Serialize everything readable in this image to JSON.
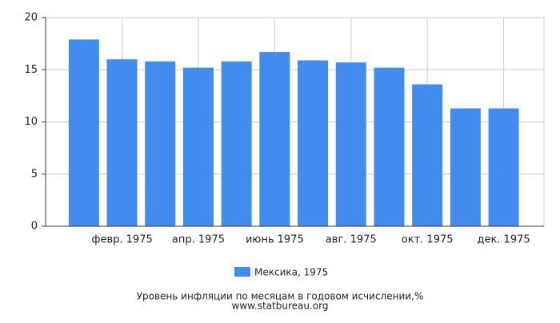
{
  "chart_data": {
    "type": "bar",
    "categories": [
      null,
      "февр. 1975",
      null,
      "апр. 1975",
      null,
      "июнь 1975",
      null,
      "авг. 1975",
      null,
      "окт. 1975",
      null,
      "дек. 1975"
    ],
    "series": [
      {
        "name": "Мексика, 1975",
        "color": "#428bef",
        "values": [
          17.9,
          16.0,
          15.8,
          15.2,
          15.8,
          16.7,
          15.9,
          15.7,
          15.2,
          13.6,
          11.3,
          11.3
        ]
      }
    ],
    "ylim": [
      0,
      20
    ],
    "yticks": [
      0,
      5,
      10,
      15,
      20
    ],
    "grid": true,
    "title": "Уровень инфляции по месяцам в годовом исчислении,%",
    "source": "www.statbureau.org"
  }
}
